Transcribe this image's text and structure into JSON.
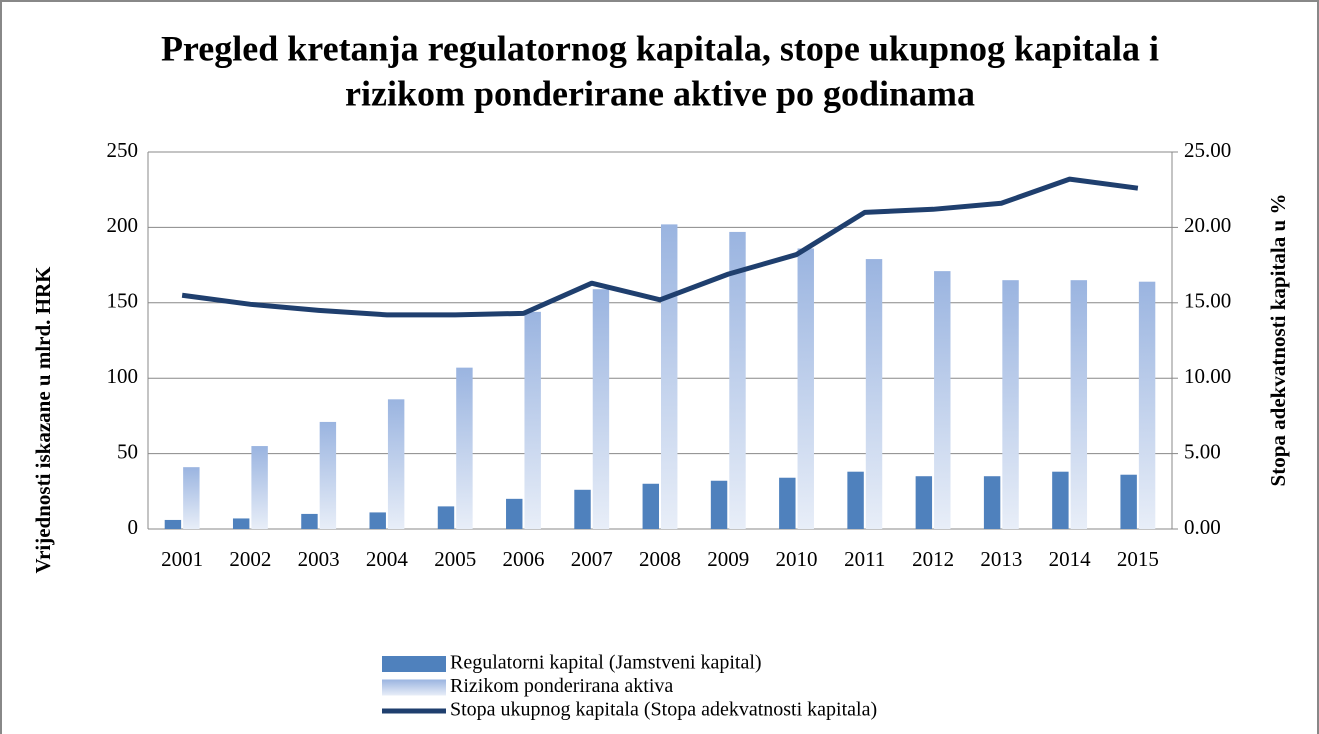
{
  "chart_data": {
    "type": "bar",
    "title": [
      "Pregled kretanja regulatornog kapitala, stope ukupnog kapitala i",
      "rizikom ponderirane aktive po godinama"
    ],
    "y_label": "Vrijednosti  iskazane u mlrd. HRK",
    "y2_label": "Stopa adekvatnosti  kapitala u %",
    "categories": [
      "2001",
      "2002",
      "2003",
      "2004",
      "2005",
      "2006",
      "2007",
      "2008",
      "2009",
      "2010",
      "2011",
      "2012",
      "2013",
      "2014",
      "2015"
    ],
    "series": [
      {
        "name": "Regulatorni kapital (Jamstveni kapital)",
        "type": "bar",
        "color": "#4f81bd",
        "values": [
          6,
          7,
          10,
          11,
          15,
          20,
          26,
          30,
          32,
          34,
          38,
          35,
          35,
          38,
          36
        ]
      },
      {
        "name": "Rizikom ponderirana aktiva",
        "type": "bar",
        "color": "#9ab4e0",
        "gradient": true,
        "values": [
          41,
          55,
          71,
          86,
          107,
          144,
          159,
          202,
          197,
          186,
          179,
          171,
          165,
          165,
          164
        ]
      },
      {
        "name": "Stopa ukupnog kapitala (Stopa adekvatnosti kapitala)",
        "type": "line",
        "axis": "y2",
        "color": "#1f3f6e",
        "values": [
          15.5,
          14.9,
          14.5,
          14.2,
          14.2,
          14.3,
          16.3,
          15.2,
          16.9,
          18.2,
          21.0,
          21.2,
          21.6,
          23.2,
          22.6
        ]
      }
    ],
    "ylim": [
      0,
      250
    ],
    "yticks": [
      0,
      50,
      100,
      150,
      200,
      250
    ],
    "y2lim": [
      0,
      25
    ],
    "y2ticks": [
      {
        "value": 0,
        "label": "0.00"
      },
      {
        "value": 5,
        "label": "5.00"
      },
      {
        "value": 10,
        "label": "10.00"
      },
      {
        "value": 15,
        "label": "15.00"
      },
      {
        "value": 20,
        "label": "20.00"
      },
      {
        "value": 25,
        "label": "25.00"
      }
    ],
    "grid": true,
    "legend": "bottom"
  }
}
